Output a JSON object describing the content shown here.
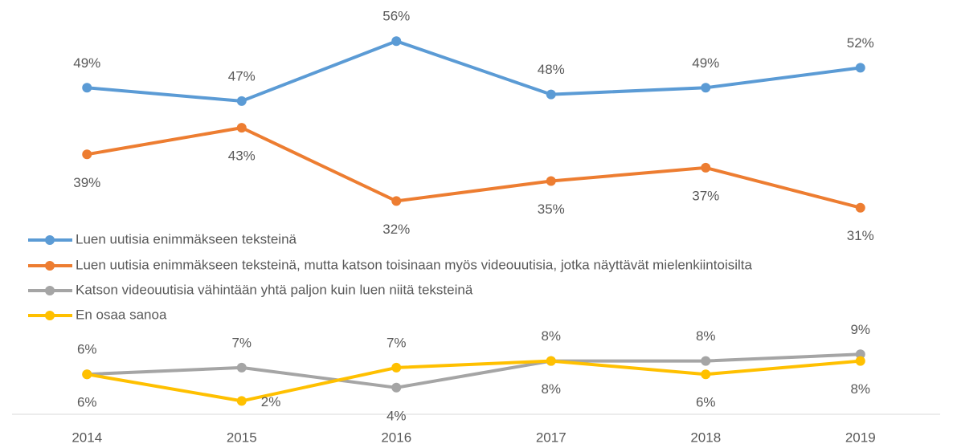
{
  "chart_data": {
    "type": "line",
    "categories": [
      "2014",
      "2015",
      "2016",
      "2017",
      "2018",
      "2019"
    ],
    "series": [
      {
        "name": "Luen uutisia enimmäkseen teksteinä",
        "color": "#5b9bd5",
        "values": [
          49,
          47,
          56,
          48,
          49,
          52
        ],
        "value_labels": [
          "49%",
          "47%",
          "56%",
          "48%",
          "49%",
          "52%"
        ]
      },
      {
        "name": "Luen uutisia enimmäkseen teksteinä, mutta katson toisinaan myös videouutisia, jotka näyttävät mielenkiintoisilta",
        "color": "#ed7d31",
        "values": [
          39,
          43,
          32,
          35,
          37,
          31
        ],
        "value_labels": [
          "39%",
          "43%",
          "32%",
          "35%",
          "37%",
          "31%"
        ]
      },
      {
        "name": "Katson videouutisia vähintään yhtä paljon kuin luen niitä teksteinä",
        "color": "#a5a5a5",
        "values": [
          6,
          7,
          4,
          8,
          8,
          9
        ],
        "value_labels": [
          "6%",
          "7%",
          "4%",
          "8%",
          "8%",
          "9%"
        ]
      },
      {
        "name": "En osaa sanoa",
        "color": "#ffc000",
        "values": [
          6,
          2,
          7,
          8,
          6,
          8
        ],
        "value_labels": [
          "6%",
          "2%",
          "7%",
          "8%",
          "6%",
          "8%"
        ]
      }
    ],
    "ylim": [
      0,
      60
    ]
  }
}
